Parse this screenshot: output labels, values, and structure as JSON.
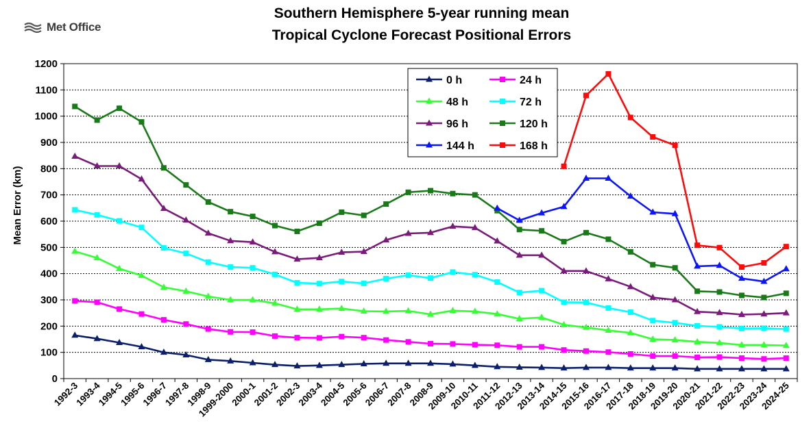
{
  "logo_text": "Met Office",
  "chart_data": {
    "type": "line",
    "title": "Southern Hemisphere 5-year running mean",
    "subtitle": "Tropical Cyclone Forecast Positional Errors",
    "ylabel": "Mean Error (km)",
    "xlabel": "",
    "ylim": [
      0,
      1200
    ],
    "yticks": [
      0,
      100,
      200,
      300,
      400,
      500,
      600,
      700,
      800,
      900,
      1000,
      1100,
      1200
    ],
    "grid": true,
    "legend_position": "top-center",
    "categories": [
      "1992-3",
      "1993-4",
      "1994-5",
      "1995-6",
      "1996-7",
      "1997-8",
      "1998-9",
      "1999-2000",
      "2000-1",
      "2001-2",
      "2002-3",
      "2003-4",
      "2004-5",
      "2005-6",
      "2006-7",
      "2007-8",
      "2008-9",
      "2009-10",
      "2010-11",
      "2011-12",
      "2012-13",
      "2013-14",
      "2014-15",
      "2015-16",
      "2016-17",
      "2017-18",
      "2018-19",
      "2019-20",
      "2020-21",
      "2021-22",
      "2022-23",
      "2023-24",
      "2024-25"
    ],
    "series": [
      {
        "name": "0 h",
        "color": "#0b1f6b",
        "marker": "triangle",
        "values": [
          165,
          152,
          137,
          121,
          100,
          90,
          72,
          67,
          60,
          53,
          48,
          50,
          53,
          56,
          58,
          58,
          58,
          55,
          50,
          45,
          43,
          42,
          40,
          42,
          42,
          40,
          40,
          40,
          37,
          37,
          37,
          37,
          37
        ]
      },
      {
        "name": "24 h",
        "color": "#ff00ff",
        "marker": "square",
        "values": [
          296,
          291,
          265,
          246,
          224,
          208,
          189,
          178,
          177,
          162,
          156,
          155,
          160,
          156,
          147,
          140,
          133,
          132,
          129,
          127,
          121,
          121,
          109,
          105,
          101,
          94,
          86,
          86,
          81,
          82,
          78,
          75,
          78
        ]
      },
      {
        "name": "48 h",
        "color": "#33ff33",
        "marker": "triangle",
        "values": [
          485,
          460,
          419,
          393,
          348,
          333,
          313,
          300,
          300,
          287,
          264,
          264,
          267,
          257,
          256,
          258,
          245,
          259,
          256,
          246,
          228,
          233,
          205,
          195,
          184,
          174,
          150,
          147,
          140,
          136,
          128,
          128,
          126
        ]
      },
      {
        "name": "72 h",
        "color": "#00ffff",
        "marker": "square",
        "values": [
          643,
          624,
          601,
          576,
          498,
          477,
          444,
          425,
          422,
          397,
          365,
          362,
          370,
          363,
          381,
          394,
          383,
          406,
          396,
          368,
          328,
          335,
          291,
          290,
          269,
          253,
          221,
          213,
          201,
          197,
          191,
          192,
          189
        ]
      },
      {
        "name": "96 h",
        "color": "#7a1a7a",
        "marker": "triangle",
        "values": [
          847,
          810,
          810,
          760,
          648,
          604,
          554,
          525,
          520,
          483,
          455,
          460,
          481,
          484,
          528,
          553,
          556,
          580,
          575,
          524,
          470,
          470,
          410,
          410,
          380,
          350,
          309,
          300,
          255,
          251,
          244,
          246,
          250
        ]
      },
      {
        "name": "120 h",
        "color": "#1a7a1a",
        "marker": "square",
        "values": [
          1037,
          985,
          1030,
          978,
          803,
          738,
          673,
          636,
          618,
          583,
          561,
          592,
          634,
          622,
          665,
          710,
          716,
          705,
          700,
          640,
          568,
          563,
          522,
          556,
          531,
          483,
          434,
          422,
          333,
          330,
          317,
          309,
          325
        ]
      },
      {
        "name": "144 h",
        "color": "#0a14ff",
        "marker": "triangle",
        "values": [
          null,
          null,
          null,
          null,
          null,
          null,
          null,
          null,
          null,
          null,
          null,
          null,
          null,
          null,
          null,
          null,
          null,
          null,
          null,
          649,
          603,
          631,
          655,
          763,
          763,
          695,
          634,
          628,
          428,
          431,
          382,
          370,
          418
        ]
      },
      {
        "name": "168 h",
        "color": "#ff0a0a",
        "marker": "square",
        "values": [
          null,
          null,
          null,
          null,
          null,
          null,
          null,
          null,
          null,
          null,
          null,
          null,
          null,
          null,
          null,
          null,
          null,
          null,
          null,
          null,
          null,
          null,
          809,
          1079,
          1161,
          995,
          921,
          889,
          508,
          499,
          425,
          441,
          503
        ]
      }
    ]
  }
}
